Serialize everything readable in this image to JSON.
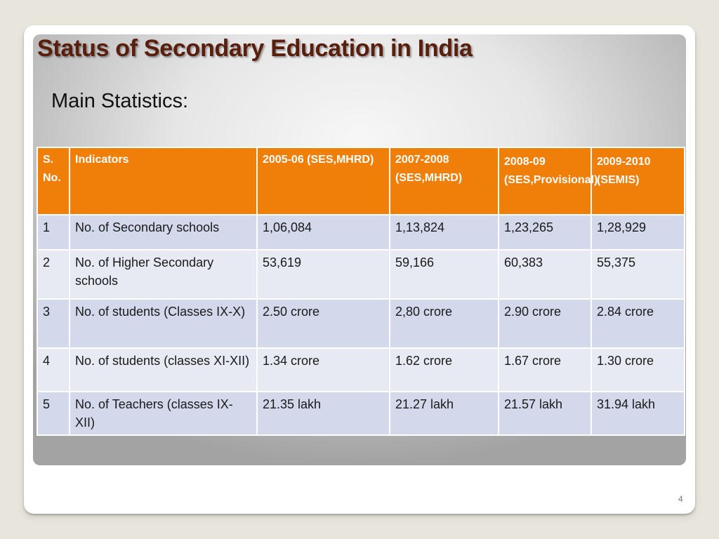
{
  "slide": {
    "title": "Status of Secondary Education in India",
    "subtitle": "Main Statistics:",
    "page_number": "4"
  },
  "table": {
    "headers": [
      "S. No.",
      "Indicators",
      "2005-06 (SES,MHRD)",
      "2007-2008 (SES,MHRD)",
      "2008-09 (SES,Provisional)",
      "2009-2010 (SEMIS)"
    ],
    "rows": [
      [
        "1",
        "No. of Secondary schools",
        "1,06,084",
        "1,13,824",
        "1,23,265",
        "1,28,929"
      ],
      [
        "2",
        "No. of Higher Secondary schools",
        "53,619",
        "59,166",
        "60,383",
        "55,375"
      ],
      [
        "3",
        "No. of students (Classes IX-X)",
        "2.50 crore",
        "2,80 crore",
        "2.90 crore",
        "2.84 crore"
      ],
      [
        "4",
        "No. of students (classes XI-XII)",
        "1.34 crore",
        "1.62 crore",
        "1.67 crore",
        "1.30 crore"
      ],
      [
        "5",
        "No. of Teachers (classes IX-XII)",
        "21.35 lakh",
        "21.27 lakh",
        "21.57 lakh",
        "31.94 lakh"
      ]
    ]
  },
  "colors": {
    "header_bg": "#f07f09",
    "row_odd_bg": "#d3d8eb",
    "row_even_bg": "#e8eaf3",
    "title_color": "#5a1f0c"
  }
}
